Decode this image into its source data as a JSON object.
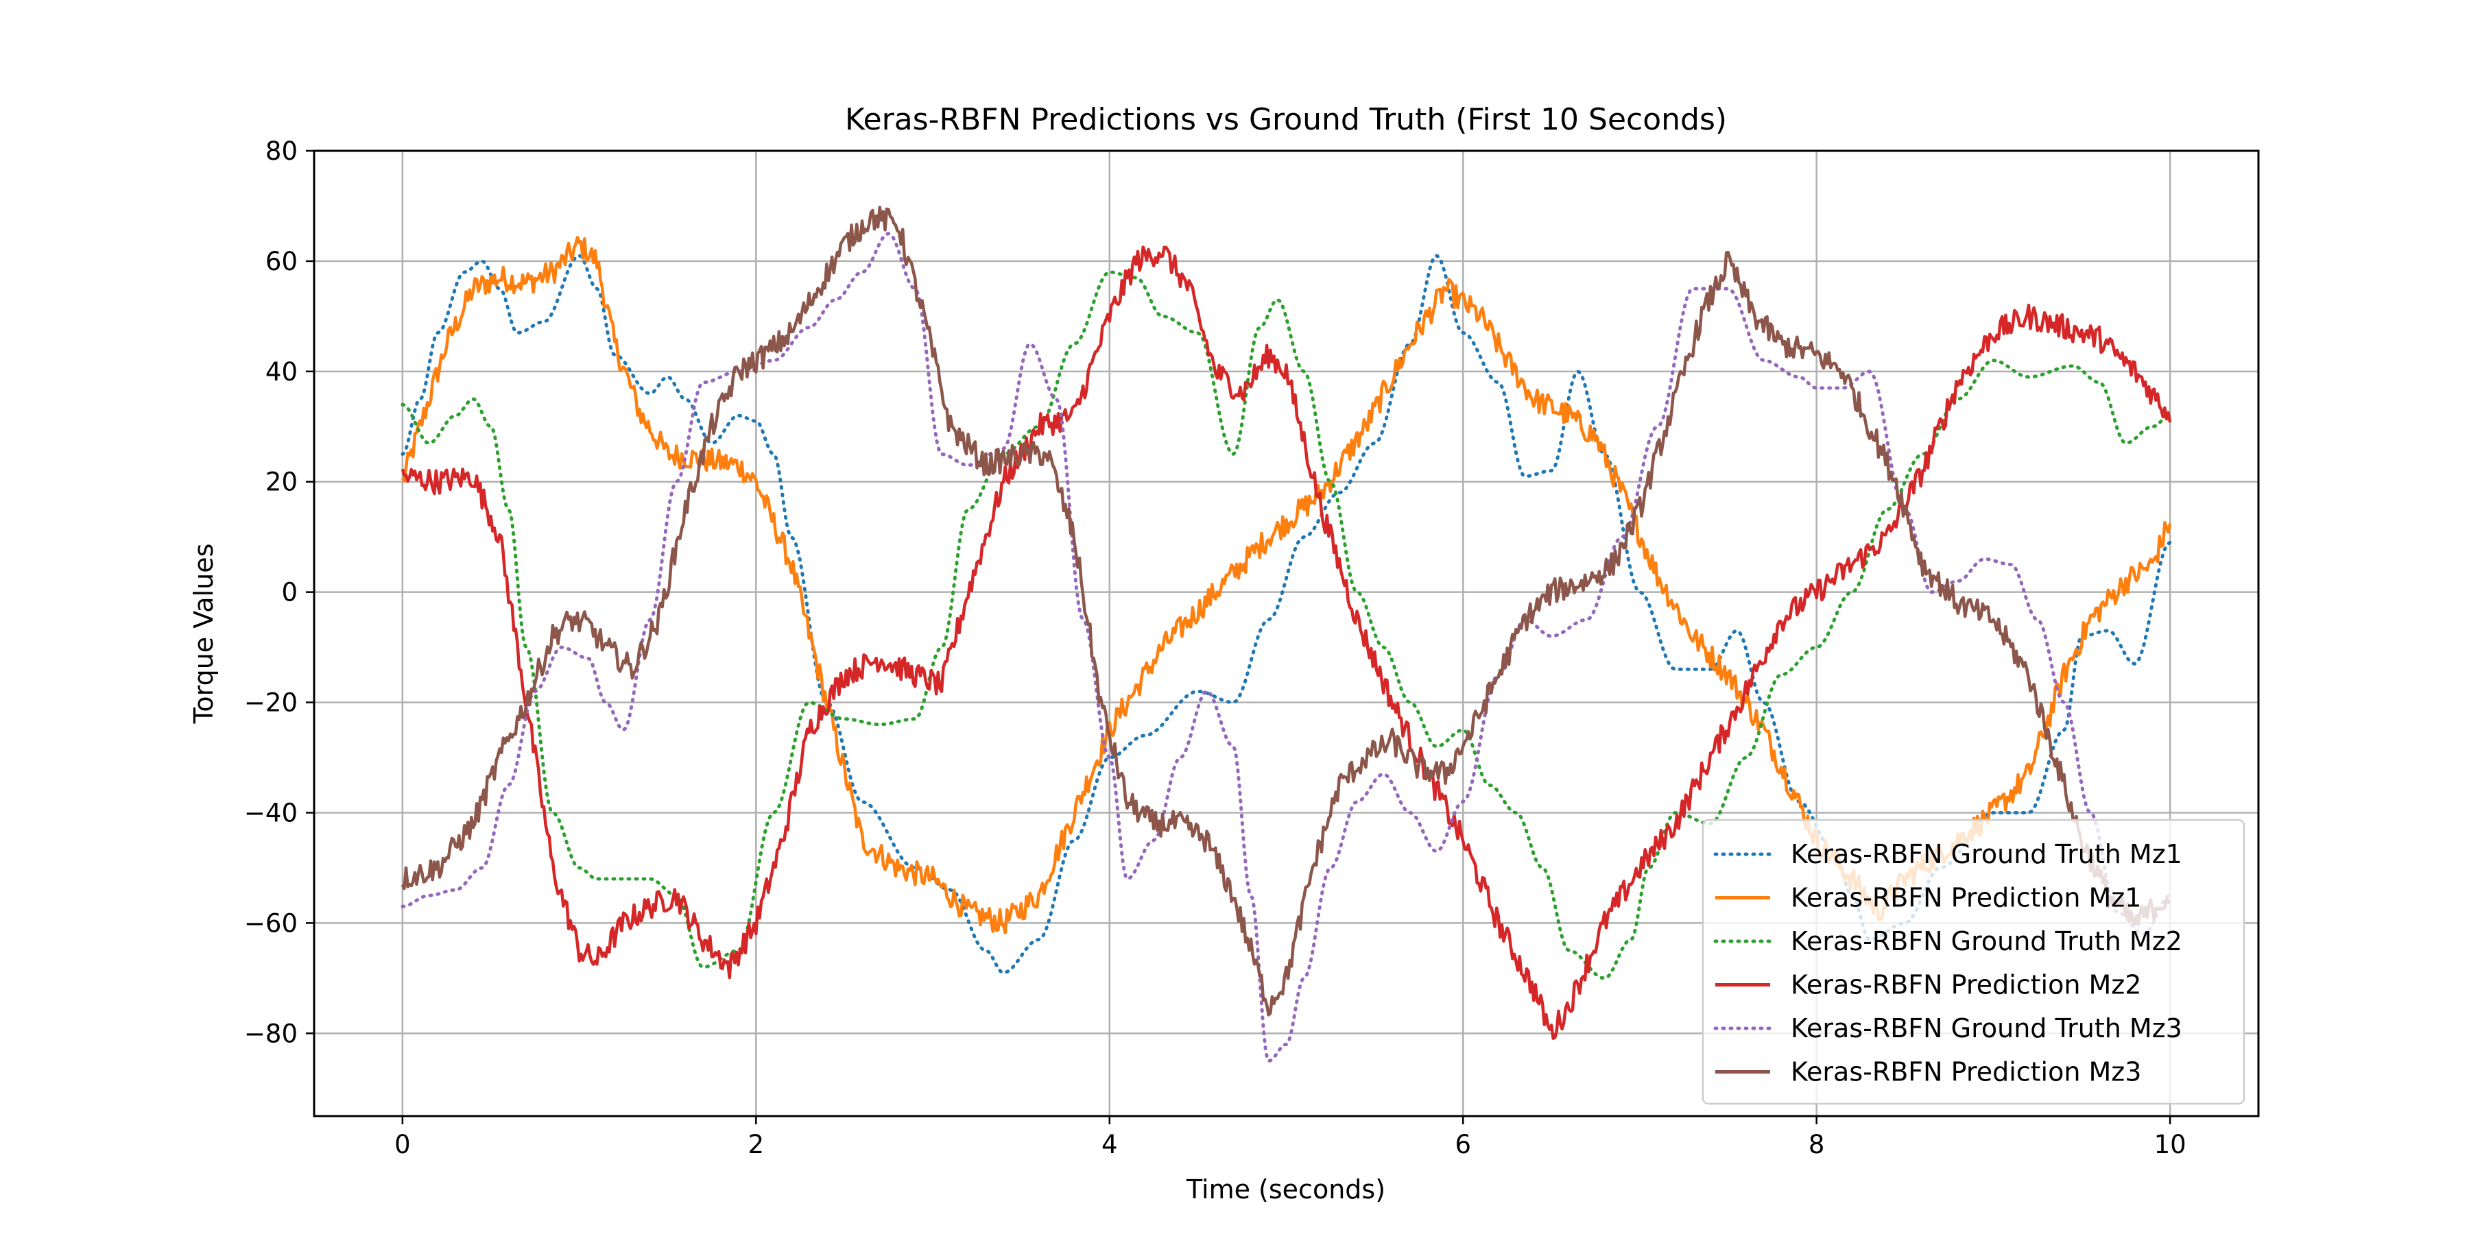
{
  "chart_data": {
    "type": "line",
    "title": "Keras-RBFN Predictions vs Ground Truth (First 10 Seconds)",
    "xlabel": "Time (seconds)",
    "ylabel": "Torque Values",
    "xlim": [
      -0.5,
      10.5
    ],
    "ylim": [
      -95,
      80
    ],
    "xticks": [
      0,
      2,
      4,
      6,
      8,
      10
    ],
    "yticks": [
      -80,
      -60,
      -40,
      -20,
      0,
      20,
      40,
      60,
      80
    ],
    "xtick_labels": [
      "0",
      "2",
      "4",
      "6",
      "8",
      "10"
    ],
    "ytick_labels": [
      "−80",
      "−60",
      "−40",
      "−20",
      "0",
      "20",
      "40",
      "60",
      "80"
    ],
    "grid": true,
    "legend_position": "lower-right",
    "series": [
      {
        "name": "Keras-RBFN Ground Truth Mz1",
        "color": "#1f77b4",
        "style": "dotted",
        "x": [
          0,
          0.1,
          0.2,
          0.35,
          0.45,
          0.55,
          0.65,
          0.8,
          1.0,
          1.1,
          1.2,
          1.4,
          1.5,
          1.6,
          1.75,
          1.9,
          2.0,
          2.1,
          2.2,
          2.4,
          2.6,
          2.9,
          3.1,
          3.3,
          3.4,
          3.6,
          3.8,
          4.0,
          4.2,
          4.5,
          4.7,
          4.9,
          5.1,
          5.3,
          5.5,
          5.7,
          5.85,
          6.0,
          6.2,
          6.35,
          6.5,
          6.65,
          6.8,
          7.0,
          7.2,
          7.4,
          7.55,
          7.7,
          7.9,
          8.1,
          8.2,
          8.3,
          8.5,
          8.7,
          9.0,
          9.2,
          9.4,
          9.5,
          9.65,
          9.8,
          10.0
        ],
        "y": [
          25,
          35,
          47,
          58,
          60,
          55,
          47,
          49,
          61,
          55,
          43,
          36,
          39,
          35,
          27,
          32,
          31,
          25,
          10,
          -20,
          -38,
          -50,
          -54,
          -65,
          -69,
          -63,
          -45,
          -30,
          -26,
          -18,
          -20,
          -5,
          10,
          18,
          27,
          45,
          61,
          47,
          38,
          21,
          22,
          40,
          25,
          0,
          -14,
          -14,
          -7,
          -20,
          -38,
          -47,
          -55,
          -63,
          -60,
          -50,
          -40,
          -40,
          -25,
          -8,
          -7,
          -13,
          9
        ]
      },
      {
        "name": "Keras-RBFN Prediction Mz1",
        "color": "#ff7f0e",
        "style": "solid",
        "x": [
          0,
          0.1,
          0.25,
          0.4,
          0.55,
          0.7,
          0.85,
          1.0,
          1.1,
          1.2,
          1.35,
          1.5,
          1.7,
          1.9,
          2.0,
          2.2,
          2.4,
          2.6,
          2.8,
          3.0,
          3.2,
          3.4,
          3.6,
          3.8,
          4.0,
          4.3,
          4.6,
          4.9,
          5.2,
          5.45,
          5.7,
          5.9,
          6.1,
          6.25,
          6.4,
          6.6,
          6.75,
          6.9,
          7.1,
          7.3,
          7.5,
          7.6,
          7.7,
          7.85,
          8.0,
          8.2,
          8.35,
          8.5,
          8.8,
          9.0,
          9.2,
          9.4,
          9.55,
          9.75,
          9.9,
          10.0
        ],
        "y": [
          20,
          30,
          45,
          55,
          57,
          56,
          58,
          63,
          60,
          45,
          32,
          25,
          24,
          23,
          20,
          5,
          -20,
          -45,
          -50,
          -52,
          -58,
          -60,
          -55,
          -40,
          -25,
          -10,
          0,
          10,
          18,
          30,
          45,
          55,
          50,
          42,
          35,
          32,
          28,
          18,
          3,
          -8,
          -15,
          -20,
          -25,
          -35,
          -45,
          -52,
          -58,
          -52,
          -45,
          -40,
          -33,
          -15,
          -5,
          2,
          5,
          13
        ]
      },
      {
        "name": "Keras-RBFN Ground Truth Mz2",
        "color": "#2ca02c",
        "style": "dotted",
        "x": [
          0,
          0.15,
          0.3,
          0.4,
          0.5,
          0.6,
          0.7,
          0.85,
          1.0,
          1.1,
          1.25,
          1.4,
          1.55,
          1.7,
          1.9,
          2.1,
          2.3,
          2.5,
          2.7,
          2.9,
          3.05,
          3.2,
          3.4,
          3.6,
          3.8,
          4.0,
          4.15,
          4.3,
          4.5,
          4.7,
          4.85,
          4.95,
          5.1,
          5.25,
          5.4,
          5.55,
          5.7,
          5.85,
          6.0,
          6.15,
          6.3,
          6.45,
          6.6,
          6.8,
          6.95,
          7.05,
          7.2,
          7.4,
          7.6,
          7.8,
          8.0,
          8.2,
          8.4,
          8.6,
          8.8,
          9.0,
          9.2,
          9.45,
          9.6,
          9.75,
          9.9,
          10.0
        ],
        "y": [
          34,
          27,
          32,
          35,
          30,
          15,
          -10,
          -40,
          -50,
          -52,
          -52,
          -52,
          -55,
          -68,
          -65,
          -40,
          -20,
          -23,
          -24,
          -23,
          -10,
          15,
          25,
          30,
          45,
          58,
          57,
          50,
          47,
          25,
          48,
          53,
          40,
          20,
          0,
          -10,
          -20,
          -28,
          -25,
          -35,
          -40,
          -50,
          -65,
          -70,
          -63,
          -50,
          -40,
          -42,
          -30,
          -15,
          -10,
          0,
          15,
          25,
          35,
          42,
          39,
          41,
          38,
          27,
          30,
          32
        ]
      },
      {
        "name": "Keras-RBFN Prediction Mz2",
        "color": "#d62728",
        "style": "solid",
        "x": [
          0,
          0.2,
          0.4,
          0.55,
          0.7,
          0.85,
          1.0,
          1.1,
          1.25,
          1.4,
          1.55,
          1.7,
          1.85,
          2.0,
          2.15,
          2.3,
          2.5,
          2.7,
          2.9,
          3.05,
          3.2,
          3.4,
          3.6,
          3.8,
          4.0,
          4.15,
          4.3,
          4.45,
          4.6,
          4.75,
          4.9,
          5.0,
          5.2,
          5.4,
          5.6,
          5.8,
          6.0,
          6.2,
          6.4,
          6.5,
          6.6,
          6.8,
          7.0,
          7.2,
          7.4,
          7.6,
          7.8,
          8.0,
          8.2,
          8.4,
          8.6,
          8.8,
          9.0,
          9.2,
          9.4,
          9.6,
          9.8,
          10.0
        ],
        "y": [
          21,
          20,
          21,
          10,
          -20,
          -50,
          -65,
          -67,
          -60,
          -57,
          -55,
          -63,
          -68,
          -60,
          -45,
          -25,
          -15,
          -12,
          -15,
          -17,
          0,
          20,
          30,
          32,
          50,
          60,
          62,
          55,
          40,
          36,
          43,
          40,
          15,
          -5,
          -20,
          -33,
          -45,
          -60,
          -72,
          -80,
          -75,
          -60,
          -50,
          -42,
          -30,
          -18,
          -5,
          0,
          5,
          10,
          22,
          38,
          47,
          50,
          48,
          46,
          40,
          32
        ]
      },
      {
        "name": "Keras-RBFN Ground Truth Mz3",
        "color": "#9467bd",
        "style": "dotted",
        "x": [
          0,
          0.15,
          0.3,
          0.45,
          0.6,
          0.75,
          0.9,
          1.05,
          1.15,
          1.25,
          1.4,
          1.55,
          1.7,
          1.9,
          2.1,
          2.3,
          2.45,
          2.6,
          2.75,
          2.9,
          3.05,
          3.2,
          3.4,
          3.55,
          3.7,
          3.85,
          4.0,
          4.1,
          4.25,
          4.4,
          4.55,
          4.7,
          4.8,
          4.9,
          5.0,
          5.1,
          5.25,
          5.4,
          5.55,
          5.7,
          5.85,
          6.0,
          6.2,
          6.35,
          6.5,
          6.7,
          6.9,
          7.1,
          7.3,
          7.5,
          7.7,
          7.9,
          8.0,
          8.15,
          8.3,
          8.5,
          8.65,
          8.8,
          8.95,
          9.1,
          9.25,
          9.4,
          9.55,
          9.7,
          9.85,
          10.0
        ],
        "y": [
          -57,
          -55,
          -54,
          -50,
          -35,
          -18,
          -10,
          -12,
          -20,
          -25,
          -5,
          20,
          38,
          40,
          42,
          48,
          53,
          58,
          65,
          55,
          25,
          23,
          26,
          45,
          35,
          -5,
          -30,
          -52,
          -45,
          -30,
          -18,
          -28,
          -55,
          -85,
          -82,
          -70,
          -50,
          -38,
          -33,
          -40,
          -47,
          -38,
          -15,
          -5,
          -8,
          -5,
          10,
          30,
          55,
          55,
          42,
          39,
          37,
          37,
          40,
          15,
          0,
          2,
          6,
          5,
          -5,
          -20,
          -40,
          -58,
          -62,
          -55
        ]
      },
      {
        "name": "Keras-RBFN Prediction Mz3",
        "color": "#8c564b",
        "style": "solid",
        "x": [
          0,
          0.2,
          0.4,
          0.55,
          0.7,
          0.85,
          0.95,
          1.05,
          1.15,
          1.3,
          1.45,
          1.6,
          1.75,
          1.9,
          2.05,
          2.2,
          2.35,
          2.5,
          2.65,
          2.8,
          2.95,
          3.1,
          3.3,
          3.5,
          3.65,
          3.8,
          3.95,
          4.1,
          4.25,
          4.4,
          4.55,
          4.7,
          4.8,
          4.9,
          5.0,
          5.15,
          5.3,
          5.45,
          5.6,
          5.75,
          5.9,
          6.05,
          6.2,
          6.35,
          6.5,
          6.7,
          6.85,
          7.0,
          7.2,
          7.35,
          7.5,
          7.65,
          7.8,
          8.0,
          8.15,
          8.3,
          8.45,
          8.6,
          8.8,
          9.0,
          9.2,
          9.35,
          9.5,
          9.65,
          9.8,
          10.0
        ],
        "y": [
          -52,
          -50,
          -42,
          -30,
          -20,
          -8,
          -5,
          -6,
          -10,
          -14,
          -5,
          15,
          30,
          40,
          43,
          47,
          55,
          63,
          68,
          67,
          50,
          30,
          23,
          25,
          25,
          10,
          -20,
          -38,
          -42,
          -42,
          -45,
          -55,
          -65,
          -75,
          -70,
          -50,
          -35,
          -30,
          -27,
          -32,
          -33,
          -25,
          -15,
          -5,
          0,
          2,
          5,
          15,
          35,
          50,
          60,
          50,
          45,
          43,
          40,
          30,
          20,
          5,
          -2,
          -5,
          -15,
          -30,
          -45,
          -55,
          -60,
          -55
        ]
      }
    ]
  }
}
